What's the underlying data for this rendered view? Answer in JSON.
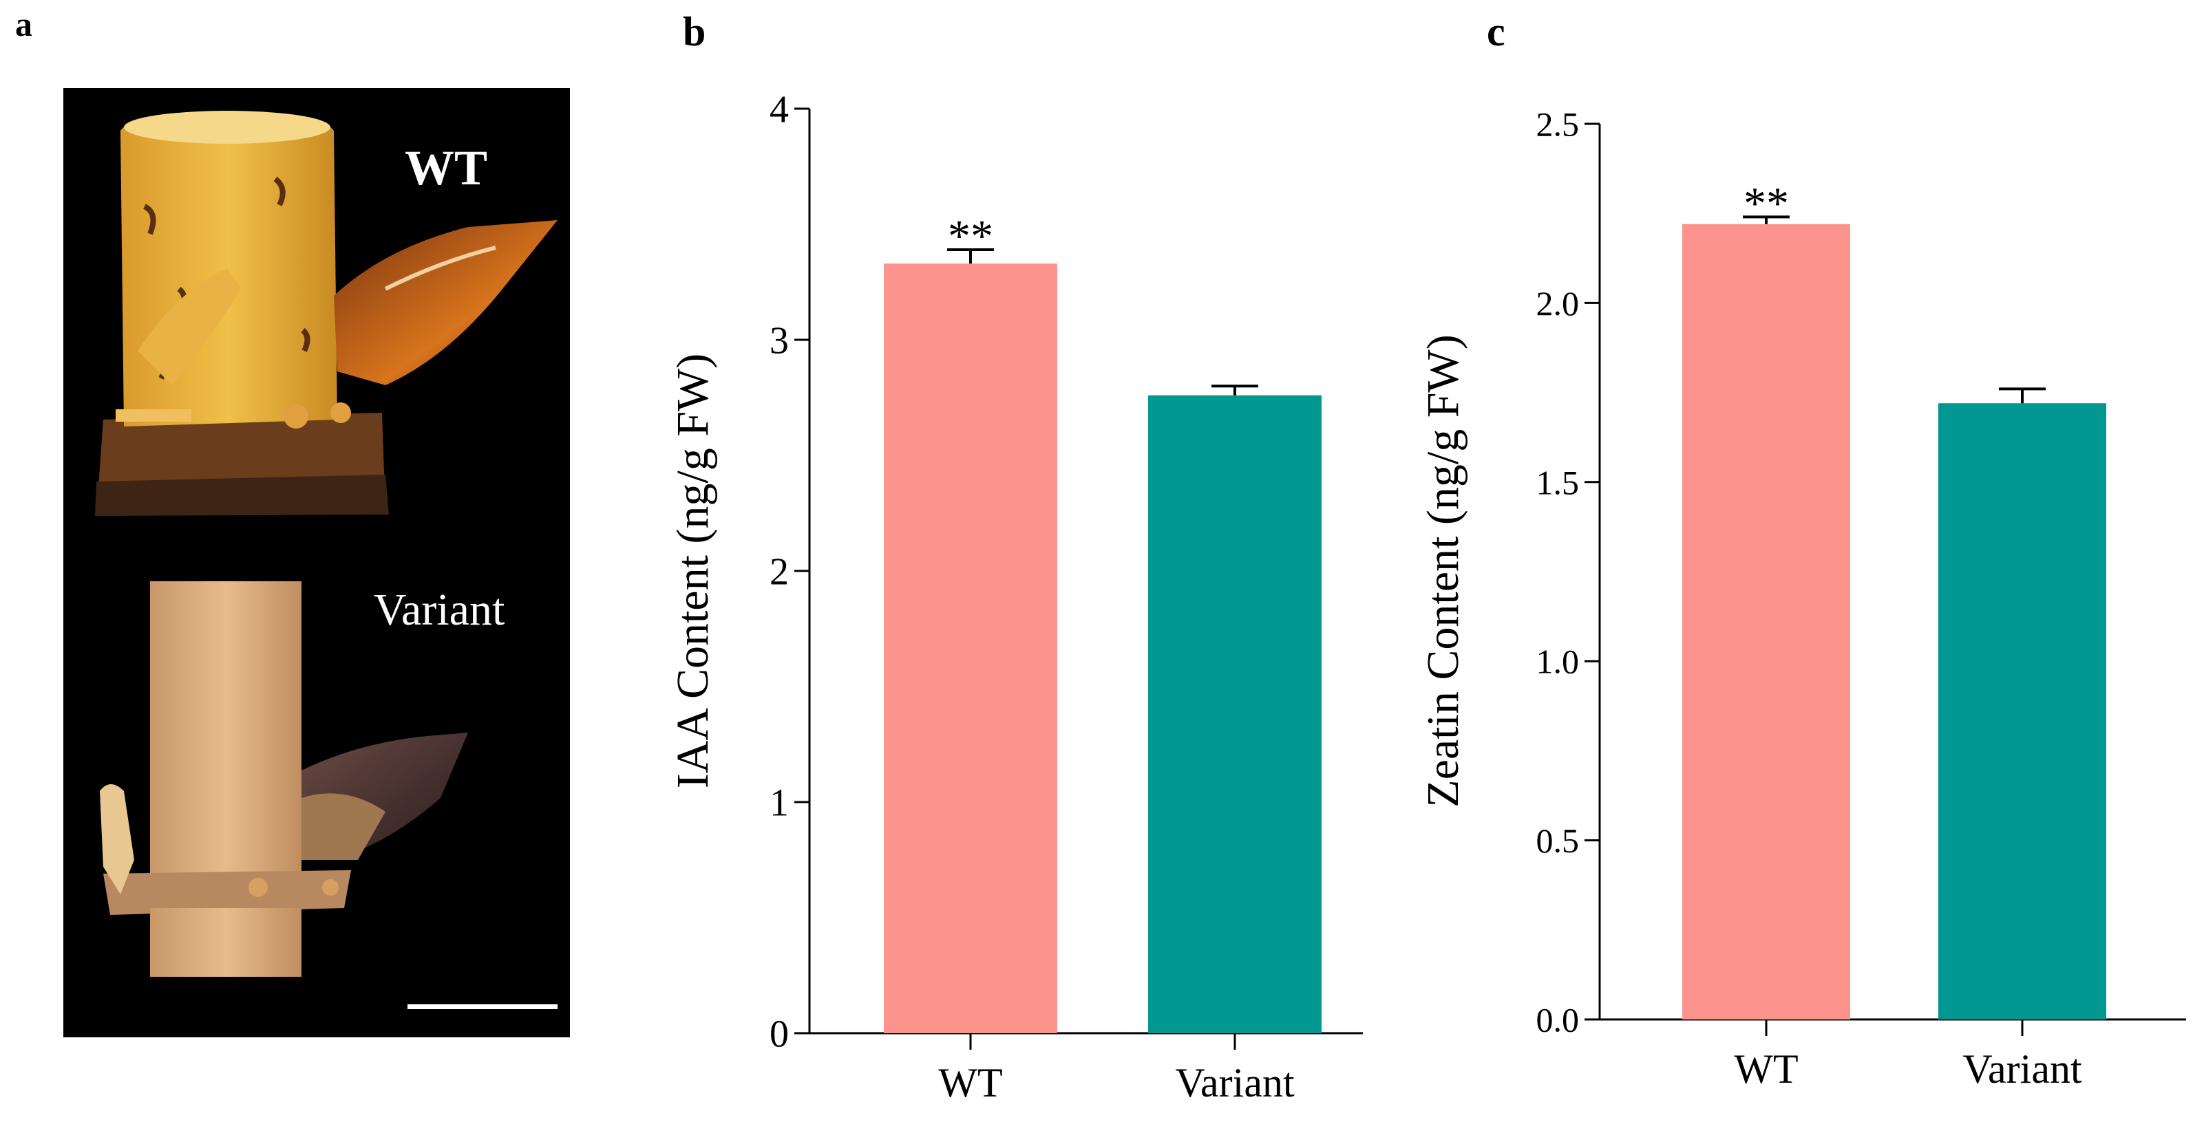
{
  "panel_a": {
    "label": "a",
    "wt_label": "WT",
    "variant_label": "Variant"
  },
  "chart_data": [
    {
      "panel_label": "b",
      "type": "bar",
      "categories": [
        "WT",
        "Variant"
      ],
      "values": [
        3.33,
        2.76
      ],
      "errors": [
        0.06,
        0.04
      ],
      "colors": [
        "#fc938d",
        "#009890"
      ],
      "significance": [
        "**",
        ""
      ],
      "ylabel": "IAA Content (ng/g FW)",
      "ylim": [
        0,
        4
      ],
      "yticks": [
        0,
        1,
        2,
        3,
        4
      ],
      "ytick_labels": [
        "0",
        "1",
        "2",
        "3",
        "4"
      ]
    },
    {
      "panel_label": "c",
      "type": "bar",
      "categories": [
        "WT",
        "Variant"
      ],
      "values": [
        2.22,
        1.72
      ],
      "errors": [
        0.02,
        0.04
      ],
      "colors": [
        "#fc938d",
        "#009890"
      ],
      "significance": [
        "**",
        ""
      ],
      "ylabel": "Zeatin Content (ng/g  FW)",
      "ylim": [
        0,
        2.5
      ],
      "yticks": [
        0,
        0.5,
        1.0,
        1.5,
        2.0,
        2.5
      ],
      "ytick_labels": [
        "0.0",
        "0.5",
        "1.0",
        "1.5",
        "2.0",
        "2.5"
      ]
    }
  ]
}
